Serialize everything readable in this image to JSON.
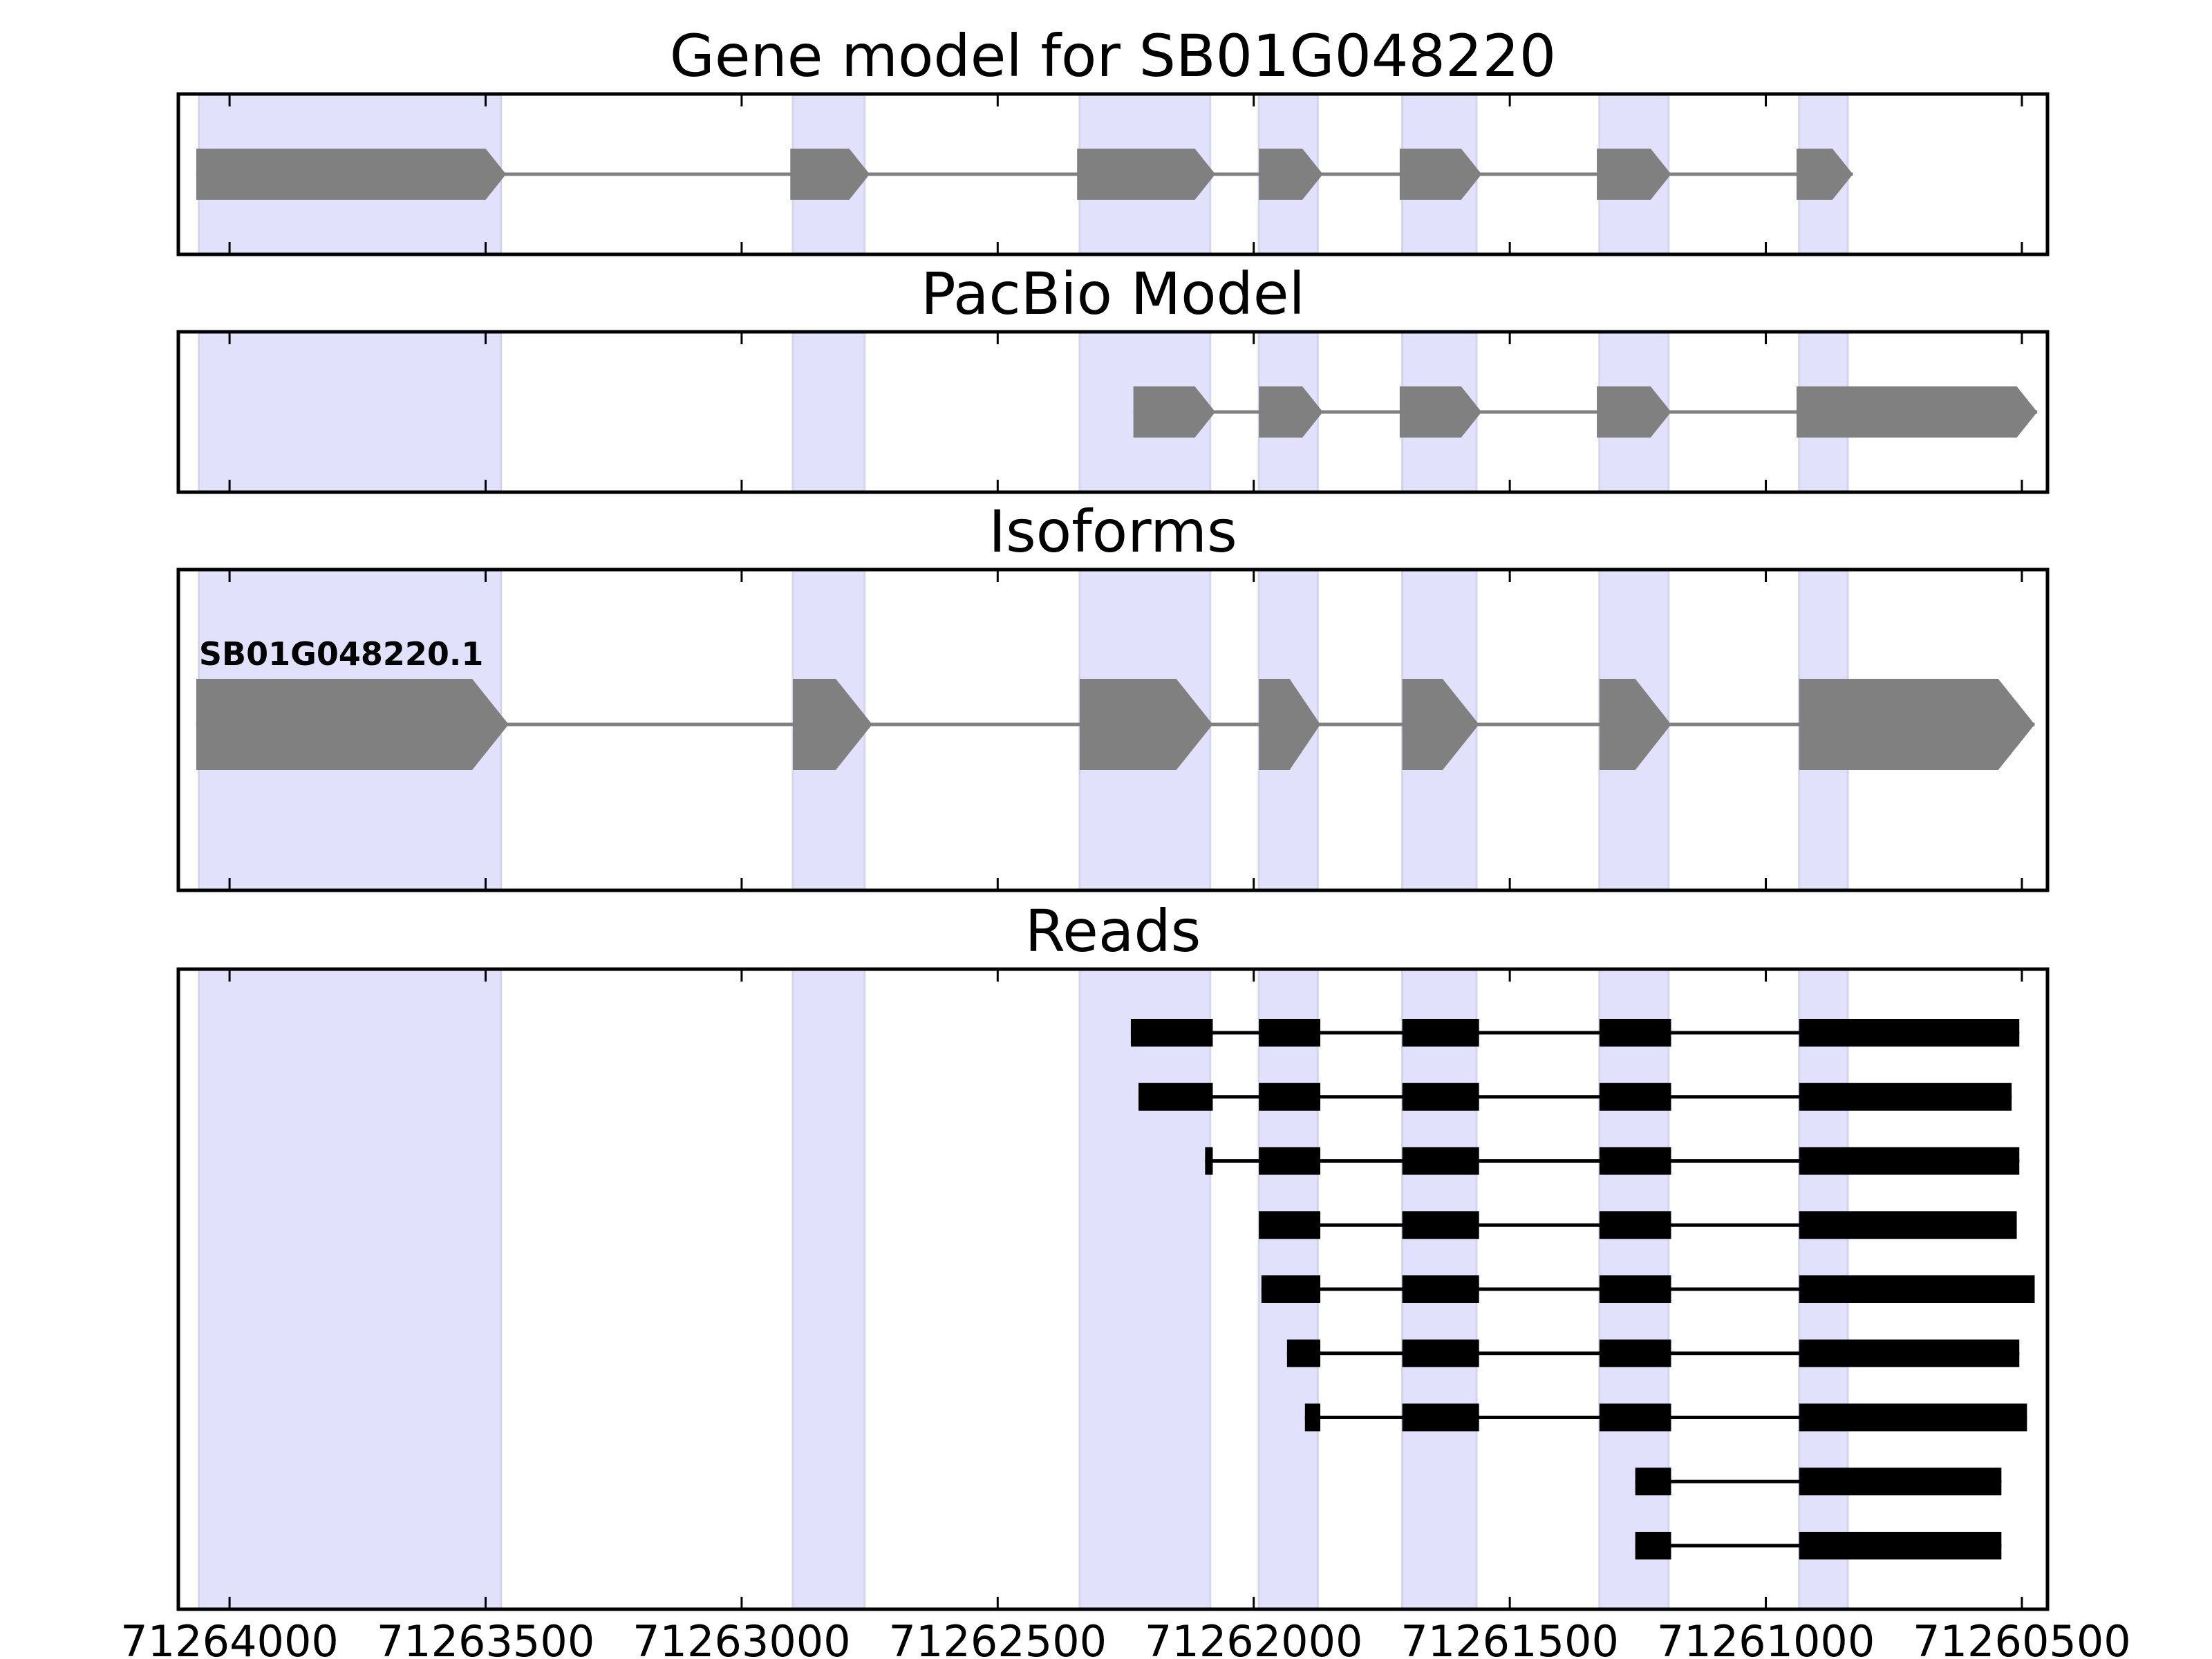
{
  "colors": {
    "background": "#ffffff",
    "exon_band": "#e1e1fb",
    "model_exon": "#808080",
    "intron_line": "#808080",
    "read": "#000000",
    "frame": "#000000"
  },
  "chart_data": {
    "type": "gene-structure",
    "grid": false,
    "xlim": [
      71264100,
      71260450
    ],
    "x_reversed": true,
    "x_ticks": [
      71264000,
      71263500,
      71263000,
      71262500,
      71262000,
      71261500,
      71261000,
      71260500
    ],
    "x_tick_labels": [
      "71264000",
      "71263500",
      "71263000",
      "71262500",
      "71262000",
      "71261500",
      "71261000",
      "71260500"
    ],
    "exon_bands": [
      [
        71264060,
        71263470
      ],
      [
        71262900,
        71262760
      ],
      [
        71262340,
        71262085
      ],
      [
        71261990,
        71261875
      ],
      [
        71261710,
        71261565
      ],
      [
        71261325,
        71261190
      ],
      [
        71260935,
        71260840
      ]
    ],
    "panels": [
      {
        "title": "Gene model for SB01G048220",
        "kind": "model",
        "transcripts": [
          {
            "label": "",
            "exons": [
              [
                71264065,
                71263460
              ],
              [
                71262905,
                71262750
              ],
              [
                71262345,
                71262075
              ],
              [
                71261990,
                71261865
              ],
              [
                71261715,
                71261555
              ],
              [
                71261330,
                71261185
              ],
              [
                71260940,
                71260830
              ]
            ]
          }
        ]
      },
      {
        "title": "PacBio Model",
        "kind": "model",
        "transcripts": [
          {
            "label": "",
            "exons": [
              [
                71262235,
                71262075
              ],
              [
                71261990,
                71261865
              ],
              [
                71261715,
                71261555
              ],
              [
                71261330,
                71261185
              ],
              [
                71260940,
                71260470
              ]
            ]
          }
        ]
      },
      {
        "title": "Isoforms",
        "kind": "model",
        "transcripts": [
          {
            "label": "SB01G048220.1",
            "exons": [
              [
                71264065,
                71263455
              ],
              [
                71262900,
                71262745
              ],
              [
                71262340,
                71262080
              ],
              [
                71261990,
                71261870
              ],
              [
                71261710,
                71261560
              ],
              [
                71261325,
                71261185
              ],
              [
                71260935,
                71260475
              ]
            ]
          }
        ]
      },
      {
        "title": "Reads",
        "kind": "reads",
        "transcripts": [
          {
            "label": "",
            "exons": [
              [
                71262240,
                71262080
              ],
              [
                71261990,
                71261870
              ],
              [
                71261710,
                71261560
              ],
              [
                71261325,
                71261185
              ],
              [
                71260935,
                71260505
              ]
            ]
          },
          {
            "label": "",
            "exons": [
              [
                71262225,
                71262080
              ],
              [
                71261990,
                71261870
              ],
              [
                71261710,
                71261560
              ],
              [
                71261325,
                71261185
              ],
              [
                71260935,
                71260520
              ]
            ]
          },
          {
            "label": "",
            "exons": [
              [
                71262095,
                71262080
              ],
              [
                71261990,
                71261870
              ],
              [
                71261710,
                71261560
              ],
              [
                71261325,
                71261185
              ],
              [
                71260935,
                71260505
              ]
            ]
          },
          {
            "label": "",
            "exons": [
              [
                71261990,
                71261870
              ],
              [
                71261710,
                71261560
              ],
              [
                71261325,
                71261185
              ],
              [
                71260935,
                71260510
              ]
            ]
          },
          {
            "label": "",
            "exons": [
              [
                71261985,
                71261870
              ],
              [
                71261710,
                71261560
              ],
              [
                71261325,
                71261185
              ],
              [
                71260935,
                71260475
              ]
            ]
          },
          {
            "label": "",
            "exons": [
              [
                71261935,
                71261870
              ],
              [
                71261710,
                71261560
              ],
              [
                71261325,
                71261185
              ],
              [
                71260935,
                71260505
              ]
            ]
          },
          {
            "label": "",
            "exons": [
              [
                71261900,
                71261870
              ],
              [
                71261710,
                71261560
              ],
              [
                71261325,
                71261185
              ],
              [
                71260935,
                71260490
              ]
            ]
          },
          {
            "label": "",
            "exons": [
              [
                71261255,
                71261185
              ],
              [
                71260935,
                71260540
              ]
            ]
          },
          {
            "label": "",
            "exons": [
              [
                71261255,
                71261185
              ],
              [
                71260935,
                71260540
              ]
            ]
          }
        ]
      }
    ]
  }
}
